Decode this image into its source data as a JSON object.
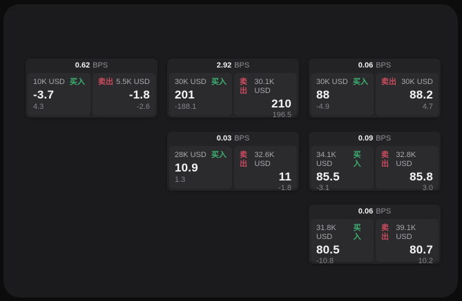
{
  "labels": {
    "bps": "BPS",
    "buy": "买入",
    "sell": "卖出"
  },
  "colors": {
    "buy_accent": "#3eb173",
    "sell_accent": "#c74b5e",
    "window_bg": "#1b1b1d",
    "card_bg": "#232325",
    "panel_bg": "#2b2b2d"
  },
  "cards": [
    {
      "col": 1,
      "row": 1,
      "bps": "0.62",
      "buy": {
        "amount": "10K USD",
        "value": "-3.7",
        "delta": "4.3"
      },
      "sell": {
        "amount": "5.5K USD",
        "value": "-1.8",
        "delta": "-2.6"
      }
    },
    {
      "col": 2,
      "row": 1,
      "bps": "2.92",
      "buy": {
        "amount": "30K USD",
        "value": "201",
        "delta": "-188.1"
      },
      "sell": {
        "amount": "30.1K USD",
        "value": "210",
        "delta": "196.5"
      }
    },
    {
      "col": 3,
      "row": 1,
      "bps": "0.06",
      "buy": {
        "amount": "30K USD",
        "value": "88",
        "delta": "-4.9"
      },
      "sell": {
        "amount": "30K USD",
        "value": "88.2",
        "delta": "4.7"
      }
    },
    {
      "col": 2,
      "row": 2,
      "bps": "0.03",
      "buy": {
        "amount": "28K USD",
        "value": "10.9",
        "delta": "1.3"
      },
      "sell": {
        "amount": "32.6K USD",
        "value": "11",
        "delta": "-1.8"
      }
    },
    {
      "col": 3,
      "row": 2,
      "bps": "0.09",
      "buy": {
        "amount": "34.1K USD",
        "value": "85.5",
        "delta": "-3.1"
      },
      "sell": {
        "amount": "32.8K USD",
        "value": "85.8",
        "delta": "3.0"
      }
    },
    {
      "col": 3,
      "row": 3,
      "bps": "0.06",
      "buy": {
        "amount": "31.8K USD",
        "value": "80.5",
        "delta": "-10.8"
      },
      "sell": {
        "amount": "39.1K USD",
        "value": "80.7",
        "delta": "10.2"
      }
    }
  ]
}
